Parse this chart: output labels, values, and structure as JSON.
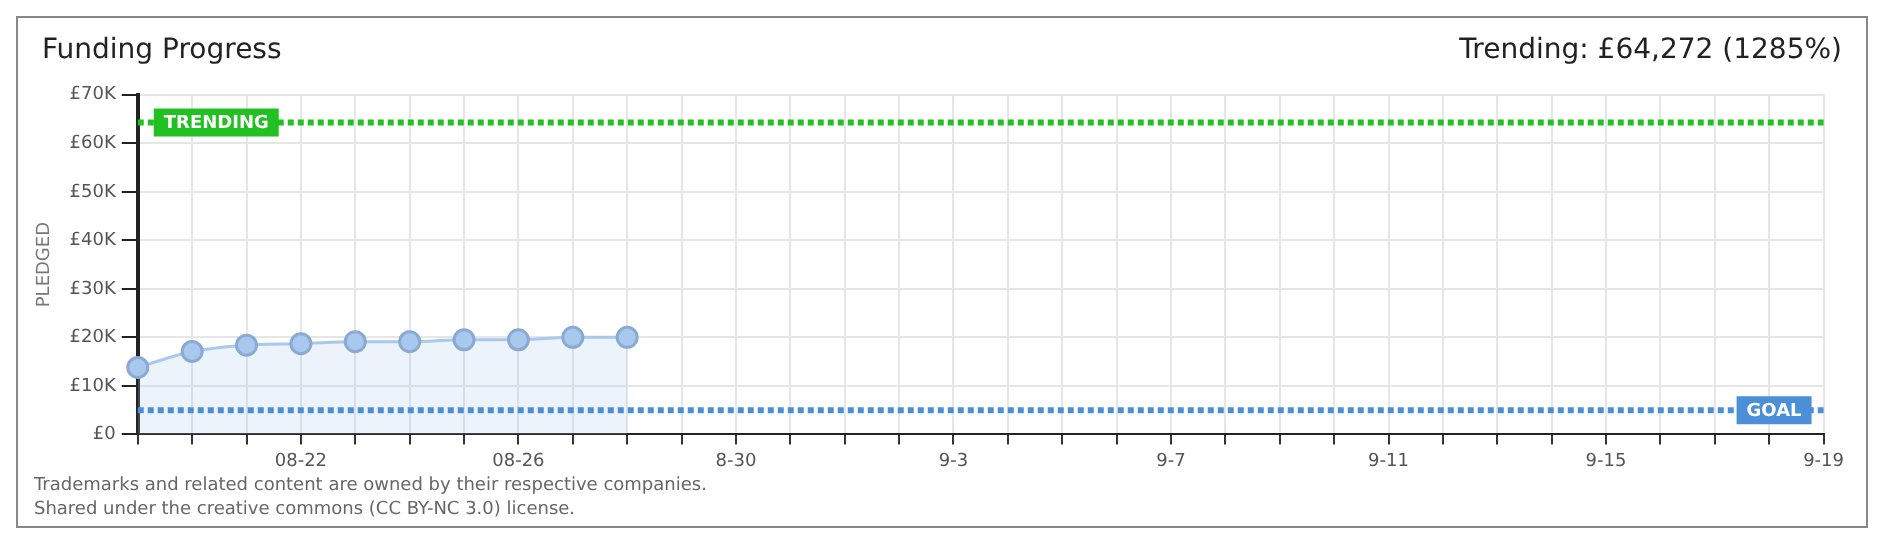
{
  "chart_data": {
    "type": "area",
    "title": "Funding Progress",
    "ylabel": "PLEDGED",
    "annotations": [
      "Trending: £64,272 (1285%)",
      "Trademarks and related content are owned by their respective companies.",
      "Shared under the creative commons (CC BY-NC 3.0) license."
    ],
    "categories": [
      null,
      null,
      null,
      "08-22",
      null,
      null,
      null,
      "08-26",
      null,
      null,
      null,
      "8-30",
      null,
      null,
      null,
      "9-3",
      null,
      null,
      null,
      "9-7",
      null,
      null,
      null,
      "9-11",
      null,
      null,
      null,
      "9-15",
      null,
      null,
      null,
      "9-19"
    ],
    "series": [
      {
        "color": "#a9c8ee",
        "values": [
          13800,
          17100,
          18400,
          18700,
          19100,
          19100,
          19500,
          19500,
          20000,
          20000,
          null,
          null,
          null,
          null,
          null,
          null,
          null,
          null,
          null,
          null,
          null,
          null,
          null,
          null,
          null,
          null,
          null,
          null,
          null,
          null,
          null,
          null
        ]
      }
    ],
    "ylim": [
      0,
      70000
    ],
    "yticks": [
      {
        "value": 0,
        "label": "£0"
      },
      {
        "value": 10000,
        "label": "£10K"
      },
      {
        "value": 20000,
        "label": "£20K"
      },
      {
        "value": 30000,
        "label": "£30K"
      },
      {
        "value": 40000,
        "label": "£40K"
      },
      {
        "value": 50000,
        "label": "£50K"
      },
      {
        "value": 60000,
        "label": "£60K"
      },
      {
        "value": 70000,
        "label": "£70K"
      }
    ],
    "ref_lines": [
      {
        "axis": "y",
        "value": 64272,
        "label": "TRENDING",
        "color": "#22c022",
        "line_style": "dotted"
      },
      {
        "axis": "y",
        "value": 5000,
        "label": "GOAL",
        "color": "#4a8fd8",
        "line_style": "dotted"
      }
    ],
    "grid": true,
    "legend": false,
    "marker": "circle"
  }
}
